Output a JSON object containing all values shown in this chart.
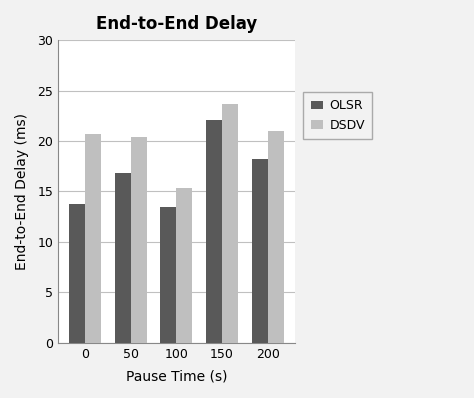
{
  "title": "End-to-End Delay",
  "xlabel": "Pause Time (s)",
  "ylabel": "End-to-End Delay (ms)",
  "categories": [
    0,
    50,
    100,
    150,
    200
  ],
  "olsr_values": [
    13.8,
    16.8,
    13.5,
    22.1,
    18.2
  ],
  "dsdv_values": [
    20.7,
    20.4,
    15.3,
    23.7,
    21.0
  ],
  "olsr_color": "#595959",
  "dsdv_color": "#bfbfbf",
  "ylim": [
    0,
    30
  ],
  "yticks": [
    0,
    5,
    10,
    15,
    20,
    25,
    30
  ],
  "legend_labels": [
    "OLSR",
    "DSDV"
  ],
  "bar_width": 0.35,
  "title_fontsize": 12,
  "axis_label_fontsize": 10,
  "tick_fontsize": 9,
  "legend_fontsize": 9,
  "fig_bg": "#f2f2f2",
  "plot_bg": "#ffffff",
  "grid_color": "#c0c0c0"
}
